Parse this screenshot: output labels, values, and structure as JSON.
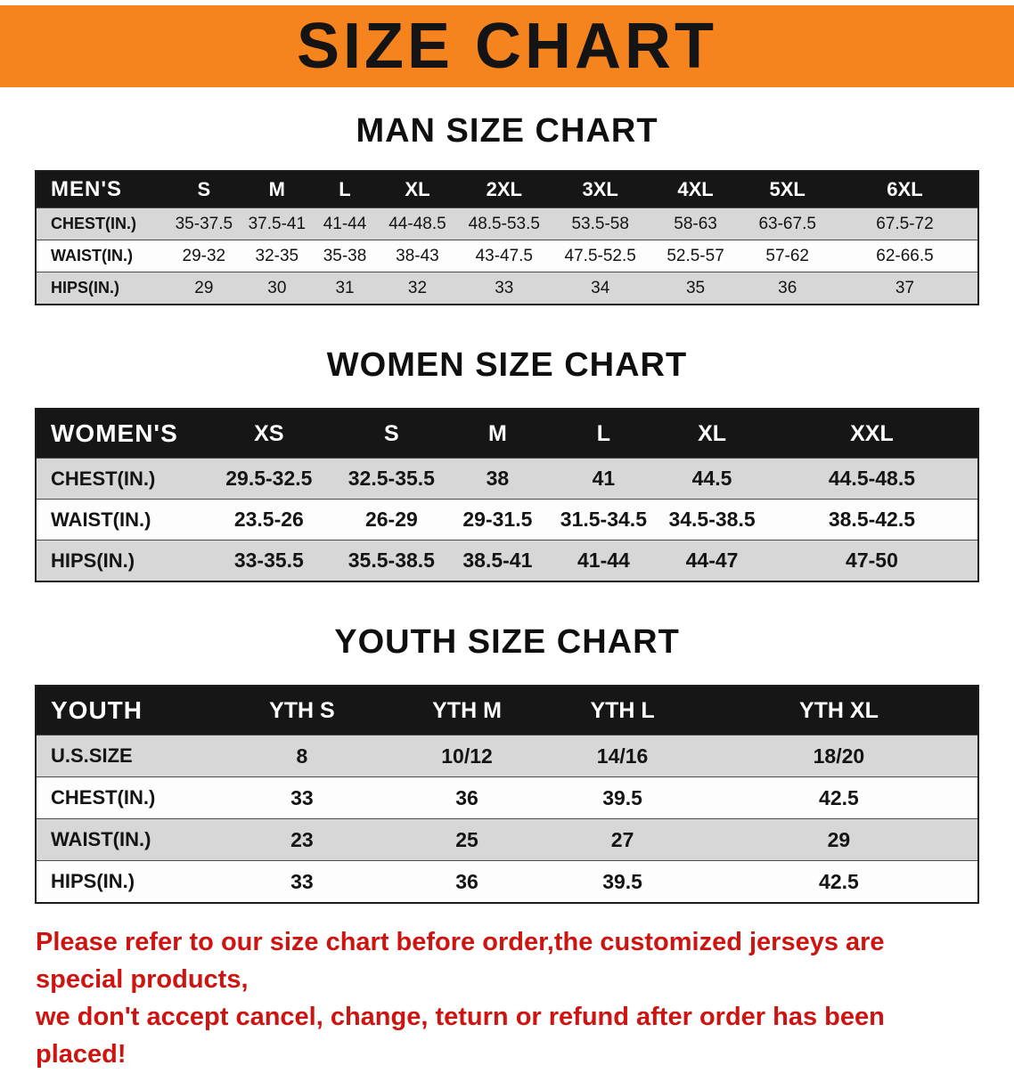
{
  "banner": {
    "title": "SIZE CHART"
  },
  "colors": {
    "banner_bg": "#f5831e",
    "banner_text": "#141414",
    "table_header_bg": "#161616",
    "table_header_text": "#ffffff",
    "row_alt_bg": "#d7d7d7",
    "disclaimer_text": "#ce1410"
  },
  "sections": [
    {
      "id": "men",
      "heading": "MAN SIZE CHART",
      "group_label": "MEN'S",
      "columns": [
        "S",
        "M",
        "L",
        "XL",
        "2XL",
        "3XL",
        "4XL",
        "5XL",
        "6XL"
      ],
      "rows": [
        {
          "label": "CHEST(IN.)",
          "values": [
            "35-37.5",
            "37.5-41",
            "41-44",
            "44-48.5",
            "48.5-53.5",
            "53.5-58",
            "58-63",
            "63-67.5",
            "67.5-72"
          ]
        },
        {
          "label": "WAIST(IN.)",
          "values": [
            "29-32",
            "32-35",
            "35-38",
            "38-43",
            "43-47.5",
            "47.5-52.5",
            "52.5-57",
            "57-62",
            "62-66.5"
          ]
        },
        {
          "label": "HIPS(IN.)",
          "values": [
            "29",
            "30",
            "31",
            "32",
            "33",
            "34",
            "35",
            "36",
            "37"
          ]
        }
      ]
    },
    {
      "id": "women",
      "heading": "WOMEN SIZE CHART",
      "group_label": "WOMEN'S",
      "columns": [
        "XS",
        "S",
        "M",
        "L",
        "XL",
        "XXL"
      ],
      "rows": [
        {
          "label": "CHEST(IN.)",
          "values": [
            "29.5-32.5",
            "32.5-35.5",
            "38",
            "41",
            "44.5",
            "44.5-48.5"
          ]
        },
        {
          "label": "WAIST(IN.)",
          "values": [
            "23.5-26",
            "26-29",
            "29-31.5",
            "31.5-34.5",
            "34.5-38.5",
            "38.5-42.5"
          ]
        },
        {
          "label": "HIPS(IN.)",
          "values": [
            "33-35.5",
            "35.5-38.5",
            "38.5-41",
            "41-44",
            "44-47",
            "47-50"
          ]
        }
      ]
    },
    {
      "id": "youth",
      "heading": "YOUTH SIZE CHART",
      "group_label": "YOUTH",
      "columns": [
        "YTH S",
        "YTH M",
        "YTH L",
        "YTH XL"
      ],
      "rows": [
        {
          "label": "U.S.SIZE",
          "values": [
            "8",
            "10/12",
            "14/16",
            "18/20"
          ]
        },
        {
          "label": "CHEST(IN.)",
          "values": [
            "33",
            "36",
            "39.5",
            "42.5"
          ]
        },
        {
          "label": "WAIST(IN.)",
          "values": [
            "23",
            "25",
            "27",
            "29"
          ]
        },
        {
          "label": "HIPS(IN.)",
          "values": [
            "33",
            "36",
            "39.5",
            "42.5"
          ]
        }
      ]
    }
  ],
  "disclaimer": {
    "lines": [
      "Please refer to our size chart before order,the customized jerseys are special products,",
      "we don't accept cancel, change, teturn or refund after order has been placed!"
    ]
  }
}
